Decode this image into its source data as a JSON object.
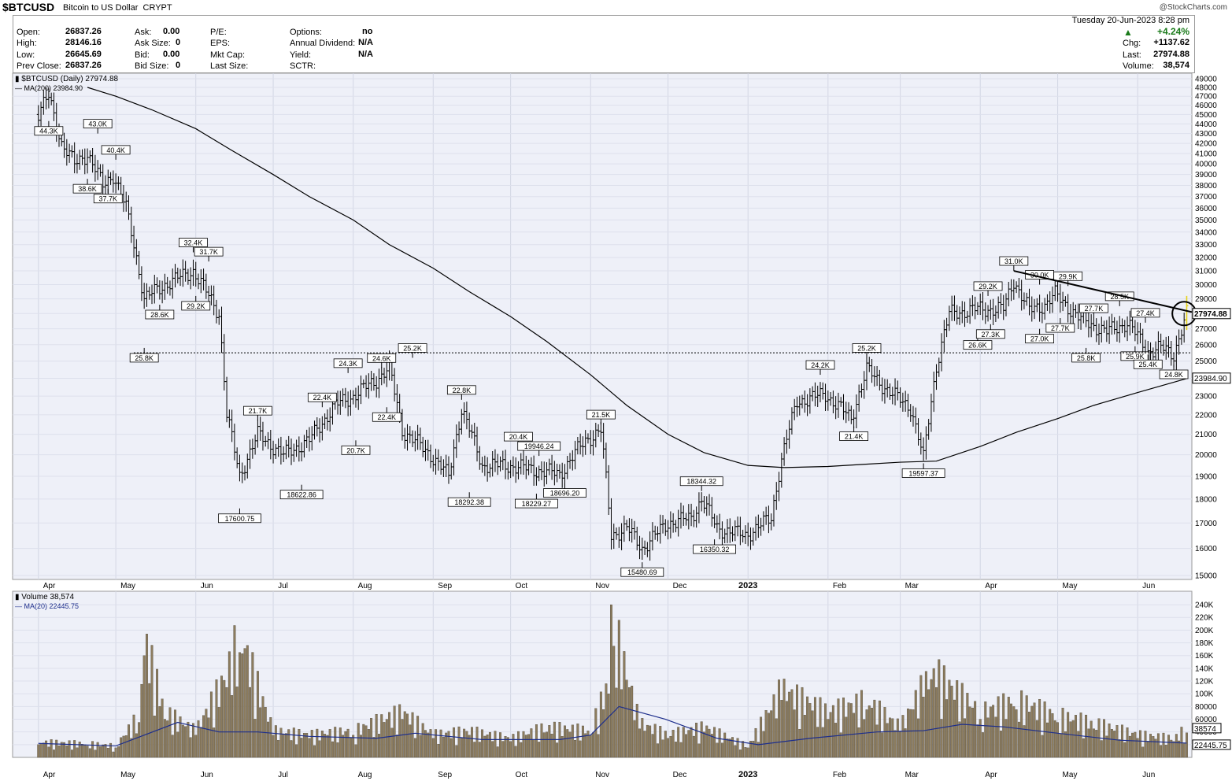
{
  "header": {
    "symbol": "$BTCUSD",
    "name": "Bitcoin to US Dollar",
    "exchange": "CRYPT",
    "credit": "@StockCharts.com"
  },
  "quote": {
    "col1": [
      {
        "label": "Open:",
        "value": "26837.26"
      },
      {
        "label": "High:",
        "value": "28146.16"
      },
      {
        "label": "Low:",
        "value": "26645.69"
      },
      {
        "label": "Prev Close:",
        "value": "26837.26"
      }
    ],
    "col2": [
      {
        "label": "Ask:",
        "value": "0.00"
      },
      {
        "label": "Ask Size:",
        "value": "0"
      },
      {
        "label": "Bid:",
        "value": "0.00"
      },
      {
        "label": "Bid Size:",
        "value": "0"
      }
    ],
    "col3": [
      {
        "label": "P/E:",
        "value": ""
      },
      {
        "label": "EPS:",
        "value": ""
      },
      {
        "label": "Mkt Cap:",
        "value": ""
      },
      {
        "label": "Last Size:",
        "value": ""
      }
    ],
    "col4": [
      {
        "label": "Options:",
        "value": "no"
      },
      {
        "label": "Annual Dividend:",
        "value": "N/A"
      },
      {
        "label": "Yield:",
        "value": "N/A"
      },
      {
        "label": "SCTR:",
        "value": ""
      }
    ],
    "right": {
      "datetime": "Tuesday  20-Jun-2023  8:28 pm",
      "pct_change": "+4.24%",
      "chg_label": "Chg:",
      "chg": "+1137.62",
      "last_label": "Last:",
      "last": "27974.88",
      "volume_label": "Volume:",
      "volume": "38,574"
    }
  },
  "colors": {
    "panel_bg": "#eef0f8",
    "price_line": "#000000",
    "volume_bar": "#8c7c5e",
    "volume_ma": "#1d2e8c",
    "up_arrow": "#1a7a1a",
    "last_bar_highlight": "#e6d21a"
  },
  "chart_data": [
    {
      "type": "line",
      "chart": "price",
      "legend": [
        "$BTCUSD (Daily) 27974.88",
        "MA(200) 23984.90"
      ],
      "x_labels": [
        "Apr",
        "May",
        "Jun",
        "Jul",
        "Aug",
        "Sep",
        "Oct",
        "Nov",
        "Dec",
        "2023",
        "Feb",
        "Mar",
        "Apr",
        "May",
        "Jun"
      ],
      "y_ticks": [
        15000,
        16000,
        17000,
        18000,
        19000,
        20000,
        21000,
        22000,
        23000,
        24000,
        25000,
        26000,
        27000,
        28000,
        29000,
        30000,
        31000,
        32000,
        33000,
        34000,
        35000,
        36000,
        37000,
        38000,
        39000,
        40000,
        41000,
        42000,
        43000,
        44000,
        45000,
        46000,
        47000,
        48000,
        49000
      ],
      "ylim": [
        15000,
        49000
      ],
      "y_scale": "log",
      "series": [
        {
          "name": "$BTCUSD",
          "dates": [
            "2022-04-01",
            "2022-04-05",
            "2022-04-10",
            "2022-04-15",
            "2022-04-20",
            "2022-04-26",
            "2022-04-30",
            "2022-05-05",
            "2022-05-12",
            "2022-05-20",
            "2022-05-31",
            "2022-06-05",
            "2022-06-10",
            "2022-06-13",
            "2022-06-18",
            "2022-06-25",
            "2022-07-05",
            "2022-07-15",
            "2022-07-25",
            "2022-08-01",
            "2022-08-10",
            "2022-08-15",
            "2022-08-20",
            "2022-08-31",
            "2022-09-07",
            "2022-09-12",
            "2022-09-20",
            "2022-09-30",
            "2022-10-10",
            "2022-10-20",
            "2022-10-30",
            "2022-11-05",
            "2022-11-09",
            "2022-11-15",
            "2022-11-21",
            "2022-12-01",
            "2022-12-10",
            "2022-12-14",
            "2022-12-20",
            "2022-12-31",
            "2023-01-10",
            "2023-01-14",
            "2023-01-20",
            "2023-01-31",
            "2023-02-10",
            "2023-02-16",
            "2023-02-25",
            "2023-03-05",
            "2023-03-10",
            "2023-03-15",
            "2023-03-20",
            "2023-03-31",
            "2023-04-10",
            "2023-04-14",
            "2023-04-20",
            "2023-04-26",
            "2023-04-30",
            "2023-05-10",
            "2023-05-20",
            "2023-05-28",
            "2023-06-05",
            "2023-06-10",
            "2023-06-15",
            "2023-06-20"
          ],
          "values": [
            45000,
            47000,
            42000,
            40000,
            41000,
            38000,
            39000,
            36000,
            29000,
            30000,
            31000,
            29500,
            28000,
            22000,
            19000,
            21000,
            20000,
            20700,
            22500,
            23000,
            23900,
            24600,
            21200,
            20000,
            19000,
            22300,
            19500,
            19500,
            19300,
            19100,
            20700,
            21200,
            16500,
            16800,
            16000,
            17000,
            17200,
            18000,
            16800,
            16500,
            17200,
            19800,
            22700,
            23100,
            21800,
            24500,
            23200,
            22400,
            19800,
            24700,
            28000,
            28300,
            28300,
            30300,
            28200,
            28600,
            29300,
            27600,
            26800,
            27400,
            25600,
            25800,
            25400,
            27974.88
          ]
        },
        {
          "name": "MA(200)",
          "dates": [
            "2022-04-20",
            "2022-05-01",
            "2022-05-15",
            "2022-06-01",
            "2022-06-15",
            "2022-07-01",
            "2022-07-15",
            "2022-08-01",
            "2022-08-15",
            "2022-09-01",
            "2022-09-15",
            "2022-10-01",
            "2022-10-15",
            "2022-11-01",
            "2022-11-15",
            "2022-12-01",
            "2022-12-15",
            "2023-01-01",
            "2023-01-15",
            "2023-02-01",
            "2023-02-15",
            "2023-03-01",
            "2023-03-15",
            "2023-04-01",
            "2023-04-15",
            "2023-05-01",
            "2023-05-15",
            "2023-06-01",
            "2023-06-20"
          ],
          "values": [
            48000,
            47000,
            45500,
            43500,
            41300,
            39000,
            37000,
            35000,
            33000,
            31200,
            29500,
            27800,
            26200,
            24200,
            22500,
            21000,
            20100,
            19500,
            19400,
            19450,
            19550,
            19650,
            19700,
            20400,
            21100,
            21800,
            22500,
            23200,
            23984.9
          ]
        }
      ],
      "annotations": [
        "44.3K",
        "38.6K",
        "43.0K",
        "37.7K",
        "40.4K",
        "32.4K",
        "31.7K",
        "28.6K",
        "29.2K",
        "25.8K",
        "21.7K",
        "17600.75",
        "18622.86",
        "22.4K",
        "24.3K",
        "20.7K",
        "24.6K",
        "22.4K",
        "25.2K",
        "22.8K",
        "18292.38",
        "20.4K",
        "19946.24",
        "18229.27",
        "18696.20",
        "21.5K",
        "15480.69",
        "18344.32",
        "16350.32",
        "24.2K",
        "21.4K",
        "25.2K",
        "19597.37",
        "29.2K",
        "26.6K",
        "27.3K",
        "31.0K",
        "30.0K",
        "27.0K",
        "27.7K",
        "29.9K",
        "27.7K",
        "25.8K",
        "28.5K",
        "25.9K",
        "27.4K",
        "25.4K",
        "24.8K"
      ],
      "axis_value_labels": [
        "27974.88",
        "23984.90"
      ]
    },
    {
      "type": "bar",
      "chart": "volume",
      "legend": [
        "Volume 38,574",
        "MA(20) 22445.75"
      ],
      "x_labels": [
        "Apr",
        "May",
        "Jun",
        "Jul",
        "Aug",
        "Sep",
        "Oct",
        "Nov",
        "Dec",
        "2023",
        "Feb",
        "Mar",
        "Apr",
        "May",
        "Jun"
      ],
      "y_ticks": [
        "20000",
        "40000",
        "60000",
        "80000",
        "100K",
        "120K",
        "140K",
        "160K",
        "180K",
        "200K",
        "220K",
        "240K"
      ],
      "ylim": [
        0,
        250000
      ],
      "series": [
        {
          "name": "Volume",
          "dates": [
            "2022-04-01",
            "2022-04-20",
            "2022-05-01",
            "2022-05-10",
            "2022-05-12",
            "2022-05-20",
            "2022-06-01",
            "2022-06-13",
            "2022-06-18",
            "2022-07-01",
            "2022-07-15",
            "2022-08-01",
            "2022-08-20",
            "2022-09-01",
            "2022-09-15",
            "2022-10-01",
            "2022-10-15",
            "2022-11-01",
            "2022-11-08",
            "2022-11-09",
            "2022-11-10",
            "2022-11-20",
            "2022-12-01",
            "2022-12-15",
            "2023-01-01",
            "2023-01-14",
            "2023-02-01",
            "2023-02-16",
            "2023-03-01",
            "2023-03-10",
            "2023-03-15",
            "2023-04-01",
            "2023-04-15",
            "2023-05-01",
            "2023-05-15",
            "2023-06-01",
            "2023-06-15",
            "2023-06-20"
          ],
          "values": [
            20000,
            18000,
            15000,
            55000,
            160000,
            60000,
            35000,
            110000,
            165000,
            35000,
            30000,
            35000,
            60000,
            30000,
            35000,
            25000,
            40000,
            35000,
            100000,
            240000,
            175000,
            45000,
            30000,
            40000,
            15000,
            90000,
            60000,
            75000,
            40000,
            95000,
            110000,
            60000,
            75000,
            55000,
            45000,
            30000,
            25000,
            38574
          ]
        },
        {
          "name": "MA(20)",
          "dates": [
            "2022-04-01",
            "2022-05-01",
            "2022-05-25",
            "2022-06-10",
            "2022-06-25",
            "2022-07-15",
            "2022-08-10",
            "2022-08-25",
            "2022-09-20",
            "2022-10-20",
            "2022-11-01",
            "2022-11-12",
            "2022-11-30",
            "2022-12-20",
            "2023-01-05",
            "2023-01-25",
            "2023-02-20",
            "2023-03-10",
            "2023-03-25",
            "2023-04-10",
            "2023-05-01",
            "2023-05-25",
            "2023-06-20"
          ],
          "values": [
            22000,
            18000,
            55000,
            40000,
            40000,
            33000,
            30000,
            38000,
            28000,
            28000,
            35000,
            80000,
            60000,
            30000,
            20000,
            30000,
            40000,
            42000,
            52000,
            48000,
            38000,
            27000,
            22445.75
          ]
        }
      ],
      "axis_value_labels": [
        "38574",
        "22445.75"
      ]
    }
  ]
}
